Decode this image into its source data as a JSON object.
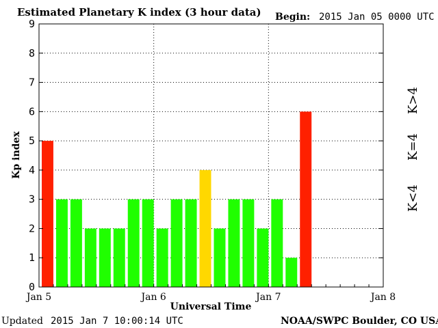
{
  "title": "Estimated Planetary K index (3 hour data)",
  "begin_label": "Begin:",
  "begin_value": "2015 Jan 05 0000 UTC",
  "updated_label": "Updated",
  "updated_value": "2015 Jan  7 10:00:14 UTC",
  "credit": "NOAA/SWPC Boulder, CO USA",
  "legend": {
    "high": {
      "label": "K>4",
      "color": "#ff2000"
    },
    "mid": {
      "label": "K=4",
      "color": "#ffd800"
    },
    "low": {
      "label": "K<4",
      "color": "#20ff00"
    }
  },
  "chart_data": {
    "type": "bar",
    "title": "Estimated Planetary K index (3 hour data)",
    "xlabel": "Universal Time",
    "ylabel": "Kp index",
    "ylim": [
      0,
      9
    ],
    "yticks": [
      0,
      1,
      2,
      3,
      4,
      5,
      6,
      7,
      8,
      9
    ],
    "x_ticks": [
      "Jan 5",
      "Jan 6",
      "Jan 7",
      "Jan 8"
    ],
    "bars_per_day": 8,
    "total_slots": 24,
    "grid": true,
    "legend_position": "right",
    "series": [
      {
        "values": [
          5,
          3,
          3,
          2,
          2,
          2,
          3,
          3,
          2,
          3,
          3,
          4,
          2,
          3,
          3,
          2,
          3,
          1,
          6
        ]
      }
    ]
  }
}
